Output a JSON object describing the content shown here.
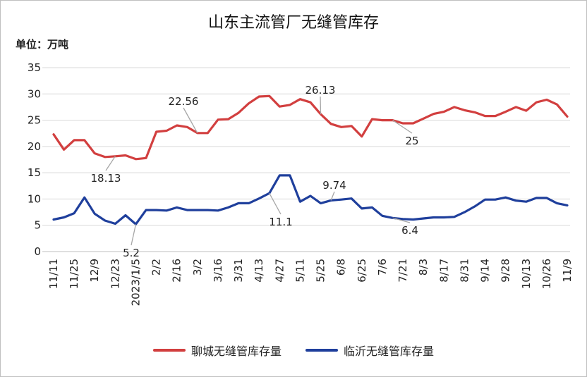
{
  "chart_data": {
    "type": "line",
    "title": "山东主流管厂无缝管库存",
    "unit_label": "单位：万吨",
    "ylim": [
      0,
      35
    ],
    "yticks": [
      0,
      5,
      10,
      15,
      20,
      25,
      30,
      35
    ],
    "grid": "horizontal",
    "legend_position": "bottom",
    "xtick_labels": [
      "11/11",
      "11/25",
      "12/9",
      "12/23",
      "2023/1/5",
      "2/2",
      "2/16",
      "3/2",
      "3/16",
      "3/31",
      "4/13",
      "4/27",
      "5/11",
      "5/25",
      "6/8",
      "6/25",
      "7/6",
      "7/21",
      "8/3",
      "8/17",
      "8/31",
      "9/14",
      "9/28",
      "10/13",
      "10/26",
      "11/9"
    ],
    "series": [
      {
        "name": "聊城无缝管库存量",
        "color": "#d23f3f",
        "values": [
          22.3,
          19.4,
          21.2,
          21.2,
          18.7,
          18.0,
          18.13,
          18.3,
          17.6,
          17.8,
          22.8,
          23.0,
          24.0,
          23.7,
          22.56,
          22.56,
          25.1,
          25.2,
          26.4,
          28.2,
          29.5,
          29.6,
          27.6,
          27.9,
          29.0,
          28.4,
          26.13,
          24.3,
          23.7,
          23.9,
          21.9,
          25.2,
          25.0,
          25.0,
          24.4,
          24.4,
          25.3,
          26.2,
          26.6,
          27.5,
          26.9,
          26.5,
          25.8,
          25.8,
          26.6,
          27.5,
          26.8,
          28.4,
          28.9,
          28.0,
          25.7
        ]
      },
      {
        "name": "临沂无缝管库存量",
        "color": "#1f3f9c",
        "values": [
          6.1,
          6.5,
          7.3,
          10.3,
          7.2,
          5.9,
          5.3,
          6.9,
          5.2,
          7.9,
          7.9,
          7.8,
          8.4,
          7.9,
          7.9,
          7.9,
          7.8,
          8.4,
          9.2,
          9.2,
          10.1,
          11.1,
          14.5,
          14.5,
          9.5,
          10.6,
          9.2,
          9.74,
          9.9,
          10.1,
          8.2,
          8.4,
          6.8,
          6.4,
          6.2,
          6.1,
          6.3,
          6.5,
          6.5,
          6.6,
          7.5,
          8.6,
          9.9,
          9.9,
          10.3,
          9.7,
          9.5,
          10.2,
          10.2,
          9.2,
          8.8
        ]
      }
    ],
    "annotations": [
      {
        "text": "22.56"
      },
      {
        "text": "18.13"
      },
      {
        "text": "26.13"
      },
      {
        "text": "25"
      },
      {
        "text": "5.2"
      },
      {
        "text": "11.1"
      },
      {
        "text": "9.74"
      },
      {
        "text": "6.4"
      }
    ]
  }
}
